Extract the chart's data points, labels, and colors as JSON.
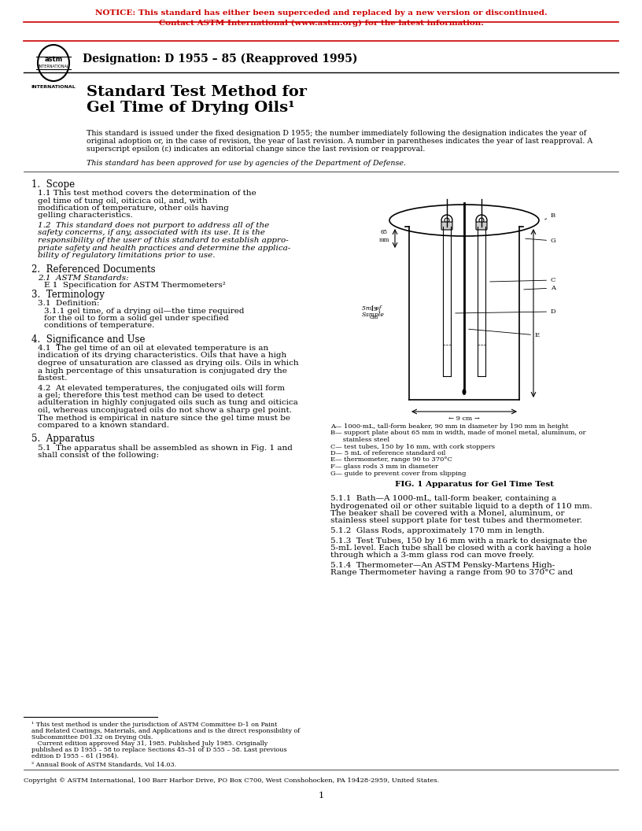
{
  "notice_line1": "NOTICE: This standard has either been superceded and replaced by a new version or discontinued.",
  "notice_line2": "Contact ASTM International (www.astm.org) for the latest information.",
  "notice_color": "#cc0000",
  "designation": "Designation: D 1955 – 85 (Reapproved 1995)",
  "title_line1": "Standard Test Method for",
  "title_line2": "Gel Time of Drying Oils¹",
  "intro_para": "This standard is issued under the fixed designation D 1955; the number immediately following the designation indicates the year of\noriginal adoption or, in the case of revision, the year of last revision. A number in parentheses indicates the year of last reapproval. A\nsuperscript epsilon (ε) indicates an editorial change since the last revision or reapproval.",
  "defense_note": "This standard has been approved for use by agencies of the Department of Defense.",
  "section1_head": "1.  Scope",
  "s1_1": "1.1  This test method covers the determination of the gel time of tung oil, oiticica oil, and, with modification of temperature, other oils having gelling characteristics.",
  "s1_2_italic": "1.2  This standard does not purport to address all of the safety concerns, if any, associated with its use. It is the responsibility of the user of this standard to establish appro-priate safety and health practices and determine the applica-bility of regulatory limitations prior to use.",
  "section2_head": "2.  Referenced Documents",
  "s2_1": "2.1  ASTM Standards:",
  "s2_1_italic": "E 1  Specification for ASTM Thermometers²",
  "section3_head": "3.  Terminology",
  "s3_1": "3.1  Definition:",
  "s3_1_1": "3.1.1  gel time, of a drying oil—the time required for the oil to form a solid gel under specified conditions of temperature.",
  "section4_head": "4.  Significance and Use",
  "s4_1": "4.1  The gel time of an oil at elevated temperature is an indication of its drying characteristics. Oils that have a high degree of unsaturation are classed as drying oils. Oils in which a high percentage of this unsaturation is conjugated dry the fastest.",
  "s4_2": "4.2  At elevated temperatures, the conjugated oils will form a gel; therefore this test method can be used to detect adulteration in highly conjugated oils such as tung and oiticica oil, whereas unconjugated oils do not show a sharp gel point. The method is empirical in nature since the gel time must be compared to a known standard.",
  "section5_head": "5.  Apparatus",
  "s5_1": "5.1  The apparatus shall be assembled as shown in Fig. 1 and shall consist of the following:",
  "fig_caption_head": "FIG. 1 Apparatus for Gel Time Test",
  "fig_legend": "A— 1000-mL, tall-form beaker, 90 mm in diameter by 190 mm in height\nB— support plate about 65 mm in width, made of monel metal, aluminum, or\n      stainless steel\nC— test tubes, 150 by 16 mm, with cork stoppers\nD— 5 mL of reference standard oil\nE— thermometer, range 90 to 370°C\nF— glass rods 3 mm in diameter\nG— guide to prevent cover from slipping",
  "s5_1_1": "5.1.1  Bath—A 1000-mL, tall-form beaker, containing a hydrogenated oil or other suitable liquid to a depth of 110 mm. The beaker shall be covered with a Monel, aluminum, or stainless steel support plate for test tubes and thermometer.",
  "s5_1_2": "5.1.2  Glass Rods, approximately 170 mm in length.",
  "s5_1_3": "5.1.3  Test Tubes, 150 by 16 mm with a mark to designate the 5-mL level. Each tube shall be closed with a cork having a hole through which a 3-mm glass rod can move freely.",
  "s5_1_4": "5.1.4  Thermometer—An ASTM Pensky-Martens High-Range Thermometer having a range from 90 to 370°C and",
  "footnote1": "¹ This test method is under the jurisdiction of ASTM Committee D-1 on Paint and Related Coatings, Materials, and Applications and is the direct responsibility of Subcommittee D01.32 on Drying Oils.\n   Current edition approved May 31, 1985. Published July 1985. Originally published as D 1955 – 58 to replace Sections 45–51 of D 555 – 58. Last previous edition D 1955 – 61 (1984).",
  "footnote2": "² Annual Book of ASTM Standards, Vol 14.03.",
  "page_num": "1",
  "copyright": "Copyright © ASTM International, 100 Barr Harbor Drive, PO Box C700, West Conshohocken, PA 19428-2959, United States.",
  "bg_color": "#ffffff",
  "text_color": "#000000",
  "border_color": "#cc0000"
}
